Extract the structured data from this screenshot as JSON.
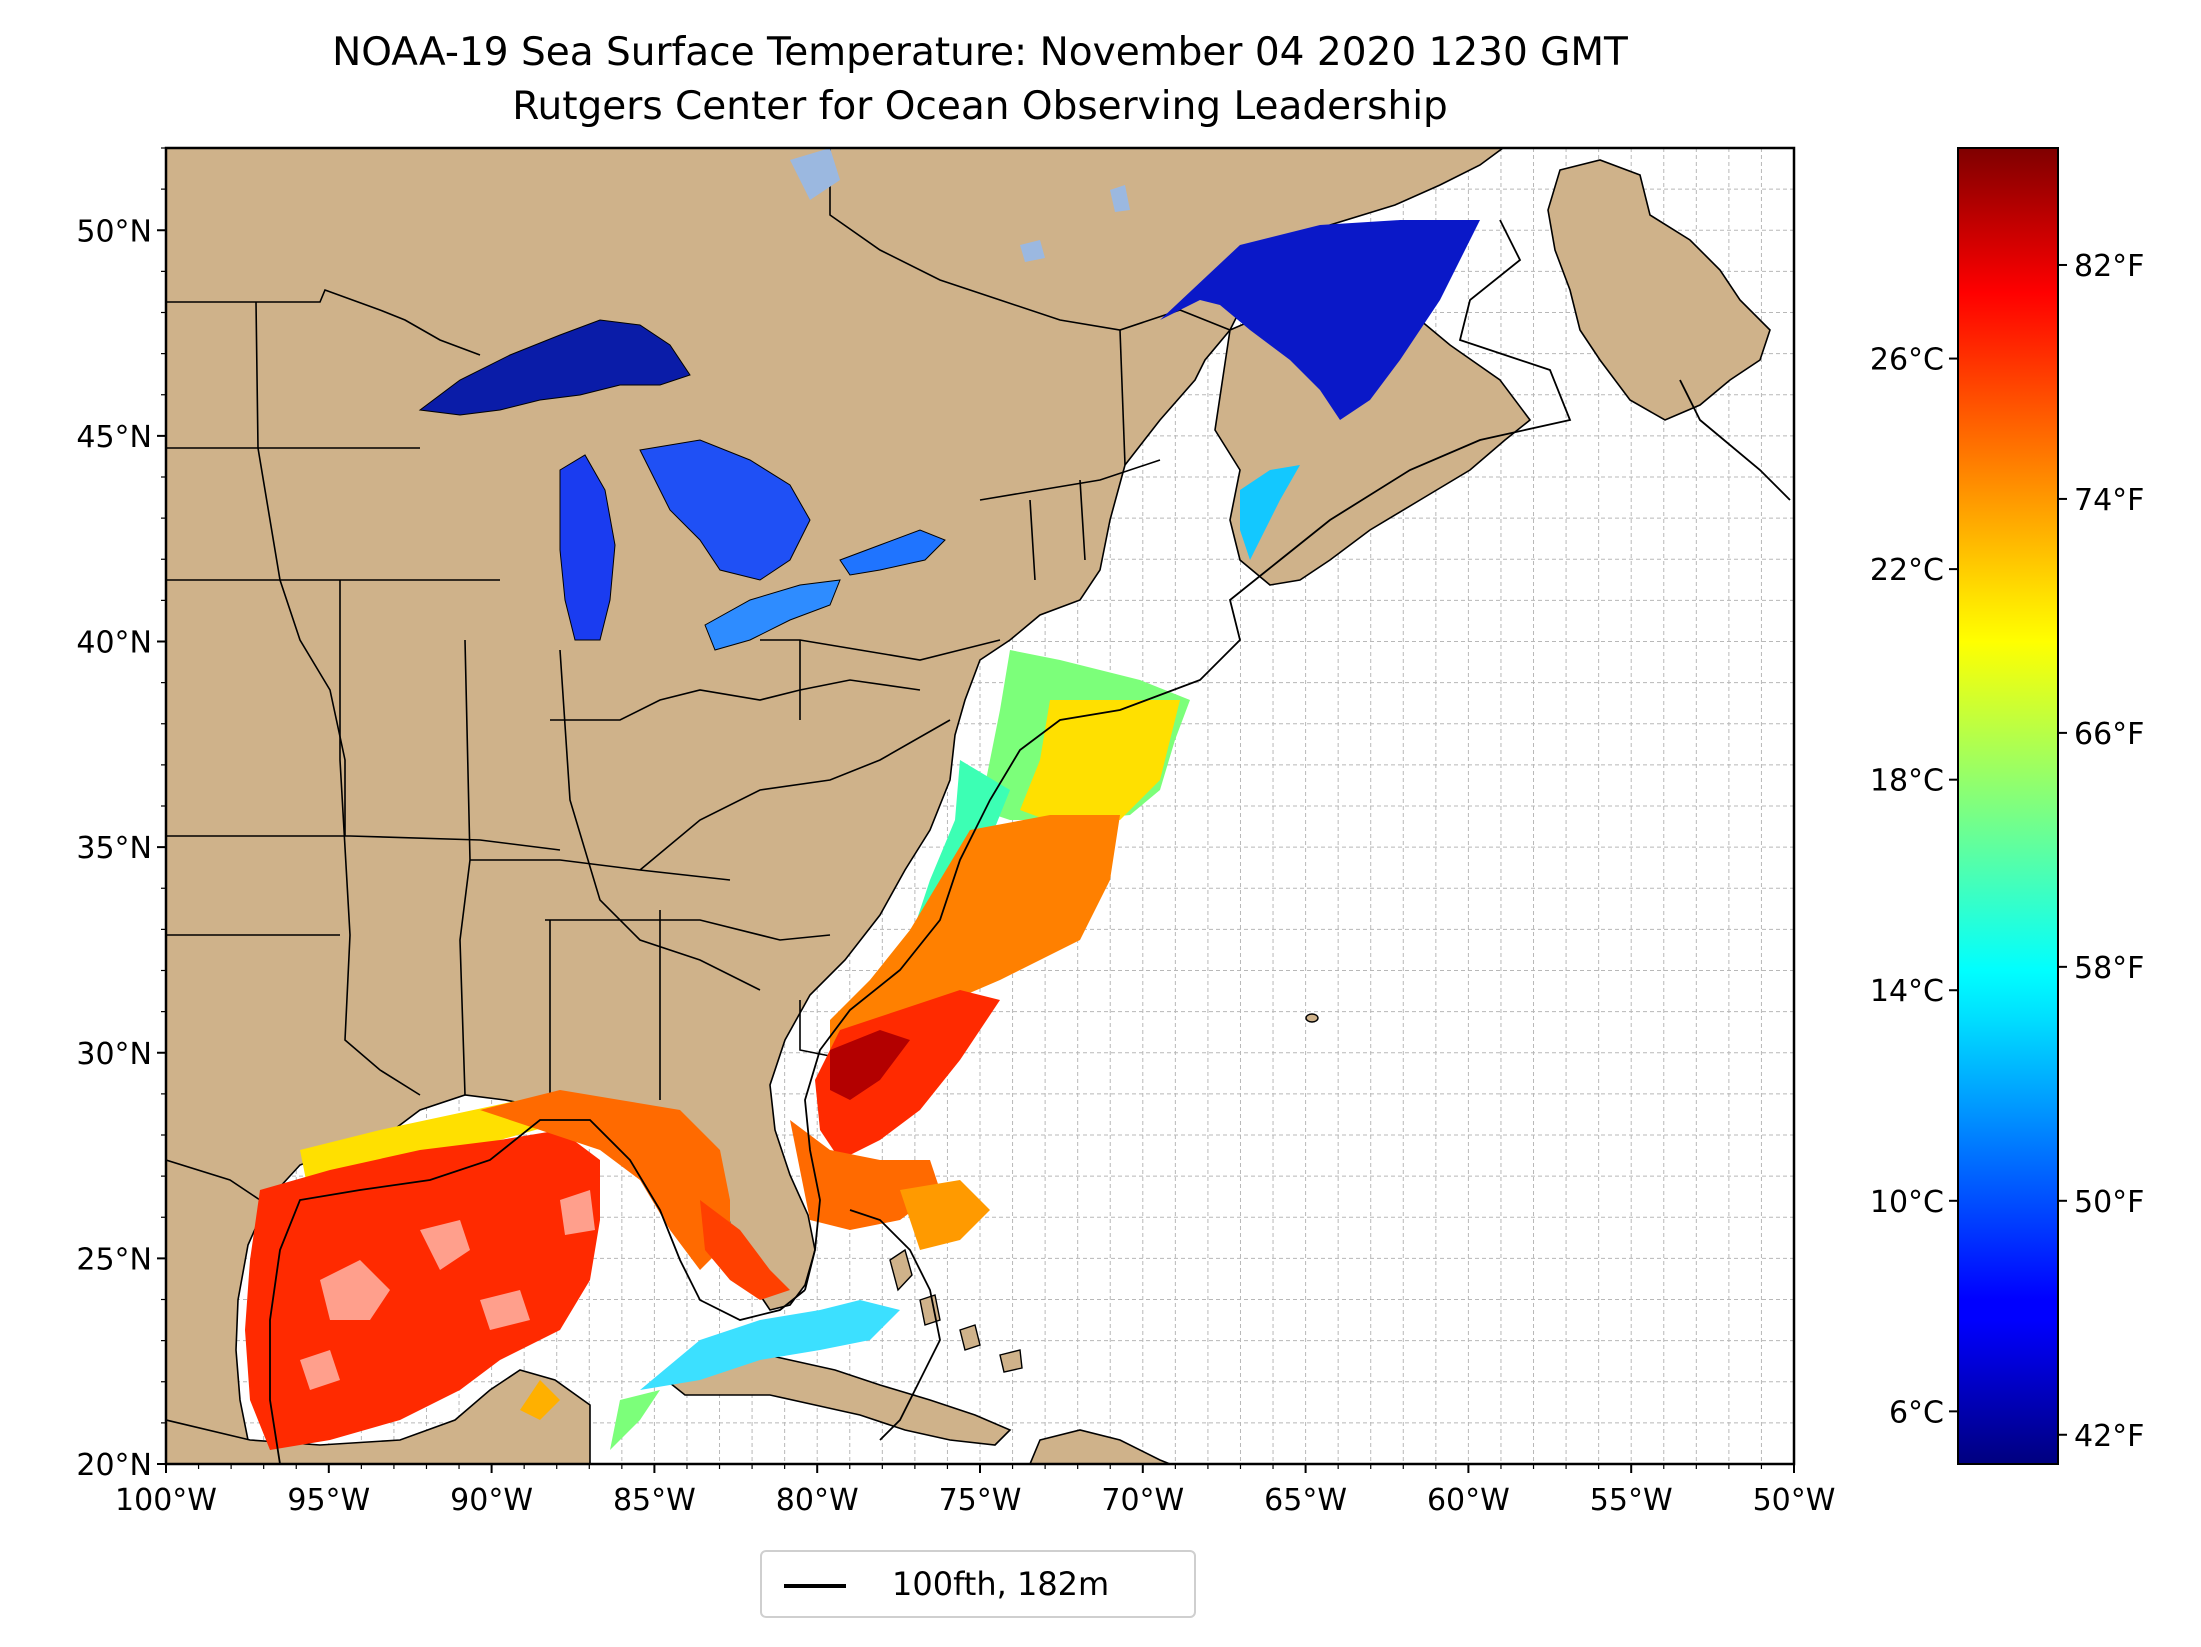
{
  "title": "NOAA-19 Sea Surface Temperature: November 04 2020 1230 GMT",
  "subtitle": "Rutgers Center for Ocean Observing Leadership",
  "map": {
    "projection": "PlateCarree",
    "lon_range": [
      -100,
      -50
    ],
    "lat_range": [
      20,
      52
    ],
    "lon_ticks": [
      {
        "value": -100,
        "label": "100°W"
      },
      {
        "value": -95,
        "label": "95°W"
      },
      {
        "value": -90,
        "label": "90°W"
      },
      {
        "value": -85,
        "label": "85°W"
      },
      {
        "value": -80,
        "label": "80°W"
      },
      {
        "value": -75,
        "label": "75°W"
      },
      {
        "value": -70,
        "label": "70°W"
      },
      {
        "value": -65,
        "label": "65°W"
      },
      {
        "value": -60,
        "label": "60°W"
      },
      {
        "value": -55,
        "label": "55°W"
      },
      {
        "value": -50,
        "label": "50°W"
      }
    ],
    "lat_ticks": [
      {
        "value": 20,
        "label": "20°N"
      },
      {
        "value": 25,
        "label": "25°N"
      },
      {
        "value": 30,
        "label": "30°N"
      },
      {
        "value": 35,
        "label": "35°N"
      },
      {
        "value": 40,
        "label": "40°N"
      },
      {
        "value": 45,
        "label": "45°N"
      },
      {
        "value": 50,
        "label": "50°N"
      }
    ],
    "grid": true,
    "land_color": "#cfb28a",
    "lake_color": "#9bb8e0",
    "ocean_color": "#ffffff"
  },
  "legend": {
    "placement": "bottom-center",
    "entries": [
      {
        "label": "100fth, 182m",
        "color": "#000000"
      }
    ]
  },
  "colorbar": {
    "colormap": "jet",
    "range_c": [
      5,
      30
    ],
    "celsius_ticks": [
      {
        "value": 6,
        "label": "6°C"
      },
      {
        "value": 10,
        "label": "10°C"
      },
      {
        "value": 14,
        "label": "14°C"
      },
      {
        "value": 18,
        "label": "18°C"
      },
      {
        "value": 22,
        "label": "22°C"
      },
      {
        "value": 26,
        "label": "26°C"
      }
    ],
    "fahrenheit_ticks": [
      {
        "value": 42,
        "label": "42°F"
      },
      {
        "value": 50,
        "label": "50°F"
      },
      {
        "value": 58,
        "label": "58°F"
      },
      {
        "value": 66,
        "label": "66°F"
      },
      {
        "value": 74,
        "label": "74°F"
      },
      {
        "value": 82,
        "label": "82°F"
      }
    ]
  }
}
